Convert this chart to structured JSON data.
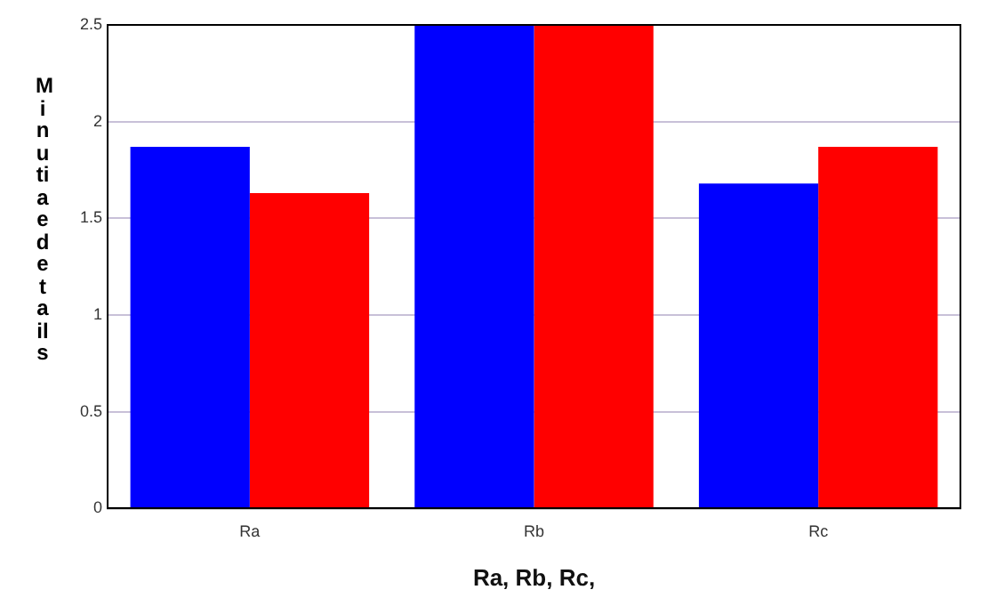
{
  "chart_data": {
    "type": "bar",
    "xlabel": "Ra, Rb, Rc,",
    "ylabel": "Minutiae details",
    "categories": [
      "Ra",
      "Rb",
      "Rc"
    ],
    "series": [
      {
        "color": "#0000ff",
        "values": [
          1.87,
          2.5,
          1.68
        ]
      },
      {
        "color": "#ff0000",
        "values": [
          1.63,
          2.5,
          1.87
        ]
      }
    ],
    "ylim": [
      0,
      2.5
    ],
    "yticks": [
      0,
      0.5,
      1,
      1.5,
      2,
      2.5
    ],
    "grid": "y",
    "legend": false
  }
}
